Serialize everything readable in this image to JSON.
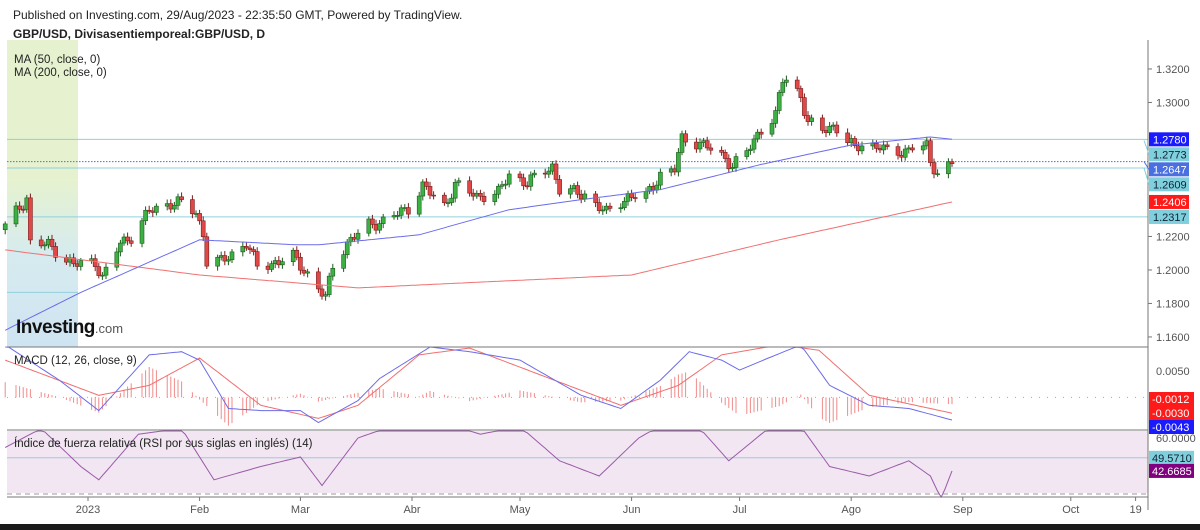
{
  "header": {
    "published": "Published on Investing.com, 29/Aug/2023 - 22:35:50 GMT, Powered by TradingView.",
    "symbol": "GBP/USD, Divisasentiemporeal:GBP/USD, D"
  },
  "logo": {
    "text": "Investing",
    "suffix": ".com"
  },
  "legends": {
    "ma50": "MA (50, close, 0)",
    "ma200": "MA (200, close, 0)",
    "macd": "MACD (12, 26, close, 9)",
    "rsi": "Índice de fuerza relativa (RSI por sus siglas en inglés) (14)"
  },
  "chart_data": [
    {
      "type": "candlestick",
      "title": "GBP/USD, Divisasentiemporeal:GBP/USD, D",
      "ylim": [
        1.154,
        1.3373
      ],
      "y_ticks": [
        "1.3200",
        "1.3000",
        "1.2200",
        "1.2000",
        "1.1800",
        "1.1600"
      ],
      "x_ticks": [
        "2023",
        "Feb",
        "Mar",
        "Abr",
        "May",
        "Jun",
        "Jul",
        "Ago",
        "Sep",
        "Oct",
        "19"
      ],
      "close_path": [
        [
          "2022-12-09",
          1.226
        ],
        [
          "2022-12-15",
          1.243
        ],
        [
          "2022-12-16",
          1.216
        ],
        [
          "2022-12-21",
          1.215
        ],
        [
          "2022-12-28",
          1.203
        ],
        [
          "2023-01-03",
          1.205
        ],
        [
          "2023-01-05",
          1.195
        ],
        [
          "2023-01-10",
          1.216
        ],
        [
          "2023-01-13",
          1.22
        ],
        [
          "2023-01-18",
          1.235
        ],
        [
          "2023-01-24",
          1.24
        ],
        [
          "2023-01-27",
          1.24
        ],
        [
          "2023-01-31",
          1.234
        ],
        [
          "2023-02-02",
          1.222
        ],
        [
          "2023-02-03",
          1.205
        ],
        [
          "2023-02-07",
          1.205
        ],
        [
          "2023-02-14",
          1.216
        ],
        [
          "2023-02-17",
          1.202
        ],
        [
          "2023-02-23",
          1.205
        ],
        [
          "2023-02-27",
          1.208
        ],
        [
          "2023-03-01",
          1.203
        ],
        [
          "2023-03-07",
          1.186
        ],
        [
          "2023-03-08",
          1.183
        ],
        [
          "2023-03-10",
          1.203
        ],
        [
          "2023-03-14",
          1.216
        ],
        [
          "2023-03-20",
          1.227
        ],
        [
          "2023-03-24",
          1.229
        ],
        [
          "2023-03-31",
          1.237
        ],
        [
          "2023-04-04",
          1.25
        ],
        [
          "2023-04-10",
          1.238
        ],
        [
          "2023-04-13",
          1.251
        ],
        [
          "2023-04-19",
          1.244
        ],
        [
          "2023-04-25",
          1.246
        ],
        [
          "2023-04-28",
          1.257
        ],
        [
          "2023-05-03",
          1.252
        ],
        [
          "2023-05-10",
          1.262
        ],
        [
          "2023-05-12",
          1.248
        ],
        [
          "2023-05-19",
          1.245
        ],
        [
          "2023-05-25",
          1.234
        ],
        [
          "2023-05-31",
          1.244
        ],
        [
          "2023-06-05",
          1.244
        ],
        [
          "2023-06-09",
          1.257
        ],
        [
          "2023-06-13",
          1.26
        ],
        [
          "2023-06-15",
          1.278
        ],
        [
          "2023-06-20",
          1.276
        ],
        [
          "2023-06-23",
          1.272
        ],
        [
          "2023-06-29",
          1.263
        ],
        [
          "2023-07-03",
          1.27
        ],
        [
          "2023-07-07",
          1.284
        ],
        [
          "2023-07-11",
          1.293
        ],
        [
          "2023-07-13",
          1.313
        ],
        [
          "2023-07-14",
          1.314
        ],
        [
          "2023-07-18",
          1.304
        ],
        [
          "2023-07-20",
          1.288
        ],
        [
          "2023-07-24",
          1.283
        ],
        [
          "2023-07-27",
          1.286
        ],
        [
          "2023-07-28",
          1.285
        ],
        [
          "2023-08-02",
          1.272
        ],
        [
          "2023-08-04",
          1.275
        ],
        [
          "2023-08-09",
          1.274
        ],
        [
          "2023-08-11",
          1.27
        ],
        [
          "2023-08-15",
          1.27
        ],
        [
          "2023-08-18",
          1.274
        ],
        [
          "2023-08-22",
          1.273
        ],
        [
          "2023-08-23",
          1.264
        ],
        [
          "2023-08-25",
          1.258
        ],
        [
          "2023-08-29",
          1.2647
        ]
      ],
      "ma50": [
        [
          "2022-12-09",
          1.164
        ],
        [
          "2022-12-30",
          1.1866
        ],
        [
          "2023-02-01",
          1.218
        ],
        [
          "2023-02-28",
          1.215
        ],
        [
          "2023-03-06",
          1.215
        ],
        [
          "2023-04-03",
          1.221
        ],
        [
          "2023-04-28",
          1.236
        ],
        [
          "2023-05-18",
          1.242
        ],
        [
          "2023-06-09",
          1.248
        ],
        [
          "2023-07-07",
          1.263
        ],
        [
          "2023-08-01",
          1.2746
        ],
        [
          "2023-08-23",
          1.2794
        ],
        [
          "2023-08-29",
          1.278
        ]
      ],
      "ma200": [
        [
          "2022-12-09",
          1.212
        ],
        [
          "2023-02-01",
          1.197
        ],
        [
          "2023-03-17",
          1.1893
        ],
        [
          "2023-06-01",
          1.197
        ],
        [
          "2023-07-12",
          1.218
        ],
        [
          "2023-08-29",
          1.2406
        ]
      ],
      "levels": [
        {
          "value": "1.2780",
          "color": "#1a1aff",
          "line": true
        },
        {
          "value": "1.2773",
          "color": "#7fcfdc",
          "line": false
        },
        {
          "value": "1.2647",
          "color": "#4a6fe0",
          "line": "dotted"
        },
        {
          "value": "1.2609",
          "color": "#7fcfdc",
          "line": true
        },
        {
          "value": "1.2406",
          "color": "#ff1a1a",
          "line": false
        },
        {
          "value": "1.2317",
          "color": "#7fcfdc",
          "line": true
        },
        {
          "value": "1.1866",
          "color": "#7fcfdc",
          "line": "left"
        }
      ],
      "colors": {
        "up": "#3cb043",
        "down": "#e04848",
        "ma50": "#6b6bea",
        "ma200": "#f07070"
      }
    },
    {
      "type": "line",
      "title": "MACD (12, 26, close, 9)",
      "ylim": [
        -0.0062,
        0.0096
      ],
      "y_ticks": [
        "0.0050"
      ],
      "macd": [
        [
          "2022-12-09",
          0.01
        ],
        [
          "2022-12-24",
          0.0033
        ],
        [
          "2023-01-04",
          -0.0025
        ],
        [
          "2023-01-18",
          0.0081
        ],
        [
          "2023-01-27",
          0.0087
        ],
        [
          "2023-02-01",
          0.0071
        ],
        [
          "2023-02-09",
          -0.0021
        ],
        [
          "2023-02-18",
          -0.0025
        ],
        [
          "2023-03-01",
          -0.0025
        ],
        [
          "2023-03-06",
          -0.0048
        ],
        [
          "2023-03-17",
          -0.0006
        ],
        [
          "2023-03-23",
          0.0036
        ],
        [
          "2023-04-06",
          0.0096
        ],
        [
          "2023-04-17",
          0.0087
        ],
        [
          "2023-05-01",
          0.0071
        ],
        [
          "2023-05-18",
          0.0004
        ],
        [
          "2023-05-29",
          -0.0021
        ],
        [
          "2023-06-09",
          0.0033
        ],
        [
          "2023-06-17",
          0.0087
        ],
        [
          "2023-06-26",
          0.0071
        ],
        [
          "2023-07-01",
          0.0052
        ],
        [
          "2023-07-09",
          0.0075
        ],
        [
          "2023-07-18",
          0.01
        ],
        [
          "2023-07-26",
          0.0023
        ],
        [
          "2023-08-06",
          -0.0015
        ],
        [
          "2023-08-17",
          -0.0021
        ],
        [
          "2023-08-29",
          -0.0043
        ]
      ],
      "signal": [
        [
          "2022-12-09",
          0.0071
        ],
        [
          "2023-01-04",
          0.0004
        ],
        [
          "2023-01-18",
          0.0023
        ],
        [
          "2023-02-01",
          0.0075
        ],
        [
          "2023-02-18",
          -0.0015
        ],
        [
          "2023-03-06",
          -0.004
        ],
        [
          "2023-03-17",
          -0.0015
        ],
        [
          "2023-04-03",
          0.0081
        ],
        [
          "2023-04-17",
          0.0094
        ],
        [
          "2023-05-07",
          0.0042
        ],
        [
          "2023-05-29",
          -0.0015
        ],
        [
          "2023-06-14",
          0.0023
        ],
        [
          "2023-06-26",
          0.0081
        ],
        [
          "2023-07-12",
          0.01
        ],
        [
          "2023-07-23",
          0.009
        ],
        [
          "2023-08-06",
          0.0004
        ],
        [
          "2023-08-29",
          -0.003
        ]
      ],
      "labels": [
        {
          "value": "-0.0012",
          "color": "#ff1a1a"
        },
        {
          "value": "-0.0030",
          "color": "#ff1a1a"
        },
        {
          "value": "-0.0043",
          "color": "#1a1aff"
        }
      ],
      "colors": {
        "macd": "#6b6bea",
        "signal": "#f07070",
        "histogram": "#f08a8a"
      }
    },
    {
      "type": "line",
      "title": "Índice de fuerza relativa (RSI por sus siglas en inglés) (14)",
      "ylim": [
        30,
        64.2
      ],
      "y_ticks": [
        "60.0000"
      ],
      "rsi": [
        [
          "2022-12-09",
          55
        ],
        [
          "2022-12-19",
          65
        ],
        [
          "2022-12-30",
          45
        ],
        [
          "2023-01-04",
          38
        ],
        [
          "2023-01-15",
          62
        ],
        [
          "2023-01-27",
          65
        ],
        [
          "2023-02-05",
          38
        ],
        [
          "2023-02-18",
          45
        ],
        [
          "2023-03-01",
          50
        ],
        [
          "2023-03-07",
          35
        ],
        [
          "2023-03-17",
          60
        ],
        [
          "2023-03-29",
          68
        ],
        [
          "2023-04-06",
          70
        ],
        [
          "2023-04-20",
          62
        ],
        [
          "2023-05-01",
          66
        ],
        [
          "2023-05-12",
          48
        ],
        [
          "2023-05-23",
          40
        ],
        [
          "2023-06-03",
          60
        ],
        [
          "2023-06-14",
          72
        ],
        [
          "2023-06-20",
          65
        ],
        [
          "2023-06-28",
          48
        ],
        [
          "2023-07-07",
          62
        ],
        [
          "2023-07-15",
          74
        ],
        [
          "2023-07-26",
          45
        ],
        [
          "2023-08-06",
          40
        ],
        [
          "2023-08-17",
          48
        ],
        [
          "2023-08-23",
          40
        ],
        [
          "2023-08-26",
          28
        ],
        [
          "2023-08-29",
          42.6685
        ]
      ],
      "labels": [
        {
          "value": "49.5710",
          "color": "#7fcfdc"
        },
        {
          "value": "42.6685",
          "color": "#800080"
        }
      ],
      "colors": {
        "rsi": "#9a5aa8",
        "background": "#f1e6f1"
      }
    }
  ]
}
